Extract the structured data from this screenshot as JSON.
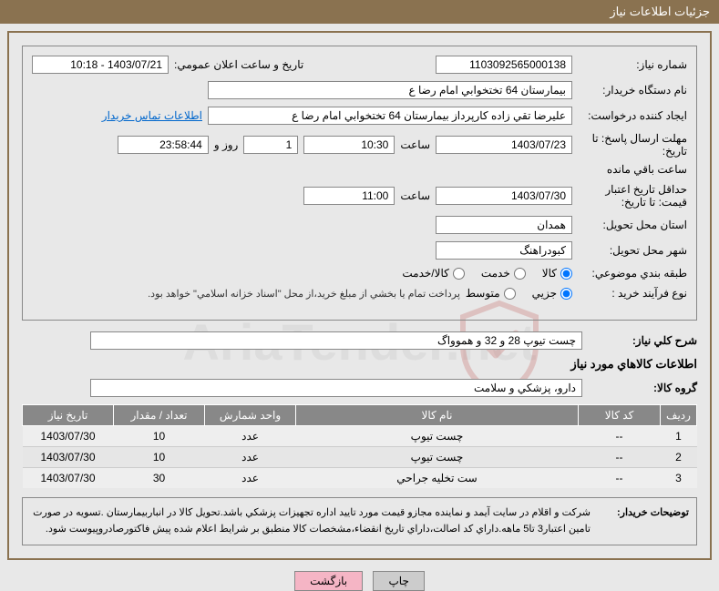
{
  "header": {
    "title": "جزئيات اطلاعات نياز"
  },
  "form": {
    "needNumber": {
      "label": "شماره نياز:",
      "value": "1103092565000138"
    },
    "announceDateTime": {
      "label": "تاريخ و ساعت اعلان عمومي:",
      "value": "1403/07/21 - 10:18"
    },
    "buyerDevice": {
      "label": "نام دستگاه خريدار:",
      "value": "بيمارستان  64 تختخوابي امام رضا   ع"
    },
    "requester": {
      "label": "ايجاد كننده درخواست:",
      "value": "عليرضا تقي زاده كارپرداز بيمارستان  64 تختخوابي امام رضا   ع",
      "contactLink": "اطلاعات تماس خریدار"
    },
    "deadlineReply": {
      "label": "مهلت ارسال پاسخ: تا تاريخ:",
      "date": "1403/07/23",
      "timeLabel": "ساعت",
      "time": "10:30",
      "days": "1",
      "daysLabel": "روز و",
      "countdown": "23:58:44",
      "remainLabel": "ساعت باقي مانده"
    },
    "minValidity": {
      "label": "حداقل تاريخ اعتبار قيمت: تا تاريخ:",
      "date": "1403/07/30",
      "timeLabel": "ساعت",
      "time": "11:00"
    },
    "deliveryProvince": {
      "label": "استان محل تحويل:",
      "value": "همدان"
    },
    "deliveryCity": {
      "label": "شهر محل تحويل:",
      "value": "كبودراهنگ"
    },
    "classification": {
      "label": "طبقه بندي موضوعي:",
      "options": [
        "كالا",
        "خدمت",
        "كالا/خدمت"
      ],
      "selected": 0
    },
    "purchaseType": {
      "label": "نوع فرآيند خريد :",
      "options": [
        "جزيي",
        "متوسط"
      ],
      "selected": 0,
      "note": "پرداخت تمام يا بخشي از مبلغ خريد،از محل \"اسناد خزانه اسلامي\" خواهد بود."
    },
    "generalDesc": {
      "label": "شرح كلي نياز:",
      "value": "چست تيوپ 28 و 32 و هموواگ"
    },
    "goodsInfoTitle": "اطلاعات كالاهاي مورد نياز",
    "goodsGroup": {
      "label": "گروه كالا:",
      "value": "دارو، پزشكي و سلامت"
    }
  },
  "table": {
    "columns": [
      "رديف",
      "كد كالا",
      "نام كالا",
      "واحد شمارش",
      "تعداد / مقدار",
      "تاريخ نياز"
    ],
    "rows": [
      [
        "1",
        "--",
        "چست تيوپ",
        "عدد",
        "10",
        "1403/07/30"
      ],
      [
        "2",
        "--",
        "چست تيوپ",
        "عدد",
        "10",
        "1403/07/30"
      ],
      [
        "3",
        "--",
        "ست تخليه جراحي",
        "عدد",
        "30",
        "1403/07/30"
      ]
    ]
  },
  "buyerNotes": {
    "label": "توضيحات خريدار:",
    "text": "شركت و اقلام در سايت آيمد و نماينده مجازو قيمت مورد تاييد اداره تجهيزات پزشكي باشد.تحويل كالا در انباربيمارستان .تسويه در صورت تامين اعتبار3 تا5 ماهه.داراي كد اصالت،داراي تاريخ انقضاء،مشخصات كالا منطبق بر شرايط اعلام شده پيش فاكتورصادروپيوست شود."
  },
  "buttons": {
    "print": "چاپ",
    "back": "بازگشت"
  },
  "watermark": "AriaTender.net"
}
